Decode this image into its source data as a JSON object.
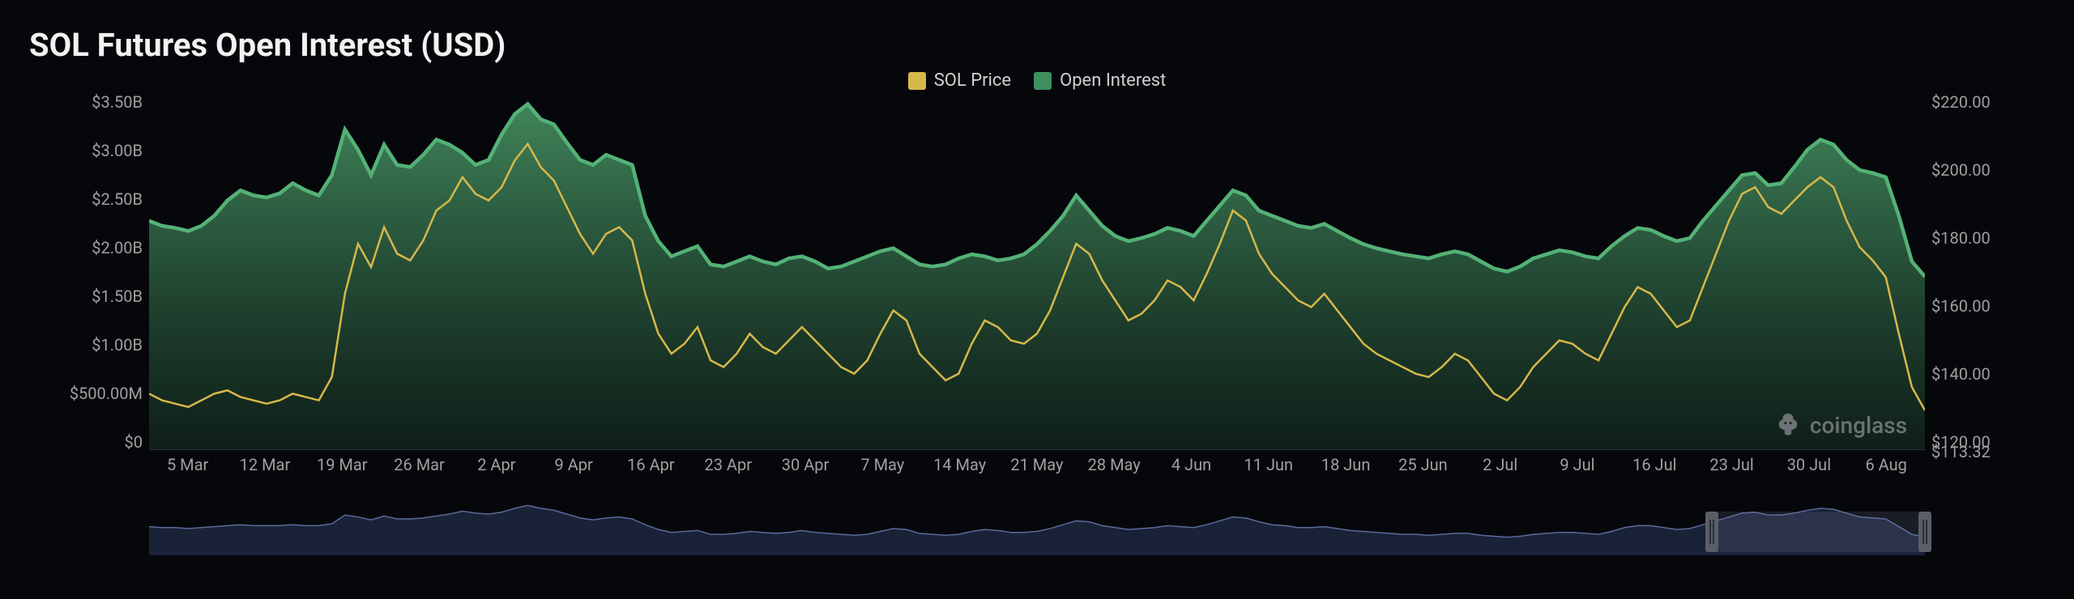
{
  "title": "SOL Futures Open Interest (USD)",
  "watermark": "coinglass",
  "legend": [
    {
      "label": "SOL Price",
      "color": "#d6b84a"
    },
    {
      "label": "Open Interest",
      "color": "#3e8f5d"
    }
  ],
  "chart": {
    "type": "area+line",
    "background_color": "#06070b",
    "grid_color": "#2a2d34",
    "text_color": "#a0a0a0",
    "title_fontsize": 40,
    "axis_fontsize": 20,
    "legend_fontsize": 22,
    "left_axis": {
      "unit": "USD",
      "ticks": [
        "$3.50B",
        "$3.00B",
        "$2.50B",
        "$2.00B",
        "$1.50B",
        "$1.00B",
        "$500.00M",
        "$0"
      ],
      "min": 0,
      "max": 3.5
    },
    "right_axis": {
      "unit": "USD",
      "ticks": [
        "$220.00",
        "$200.00",
        "$180.00",
        "$160.00",
        "$140.00",
        "$120.00"
      ],
      "extra_tick": "$113.32",
      "min": 113.32,
      "max": 220
    },
    "x_axis": {
      "labels": [
        "5 Mar",
        "12 Mar",
        "19 Mar",
        "26 Mar",
        "2 Apr",
        "9 Apr",
        "16 Apr",
        "23 Apr",
        "30 Apr",
        "7 May",
        "14 May",
        "21 May",
        "28 May",
        "4 Jun",
        "11 Jun",
        "18 Jun",
        "25 Jun",
        "2 Jul",
        "9 Jul",
        "16 Jul",
        "23 Jul",
        "30 Jul",
        "6 Aug"
      ]
    },
    "open_interest": {
      "color_top": "#4a9b68",
      "color_bottom": "#163324",
      "stroke": "#54b276",
      "stroke_width": 2,
      "values_billions": [
        2.25,
        2.2,
        2.18,
        2.15,
        2.2,
        2.3,
        2.45,
        2.55,
        2.5,
        2.48,
        2.52,
        2.62,
        2.55,
        2.5,
        2.7,
        3.15,
        2.95,
        2.7,
        3.0,
        2.8,
        2.78,
        2.9,
        3.05,
        3.0,
        2.92,
        2.8,
        2.85,
        3.1,
        3.3,
        3.4,
        3.25,
        3.2,
        3.02,
        2.85,
        2.8,
        2.9,
        2.85,
        2.8,
        2.3,
        2.05,
        1.9,
        1.95,
        2.0,
        1.82,
        1.8,
        1.85,
        1.9,
        1.85,
        1.82,
        1.88,
        1.9,
        1.85,
        1.78,
        1.8,
        1.85,
        1.9,
        1.95,
        1.98,
        1.9,
        1.82,
        1.8,
        1.82,
        1.88,
        1.92,
        1.9,
        1.86,
        1.88,
        1.92,
        2.02,
        2.15,
        2.3,
        2.5,
        2.35,
        2.2,
        2.1,
        2.05,
        2.08,
        2.12,
        2.18,
        2.15,
        2.1,
        2.25,
        2.4,
        2.55,
        2.5,
        2.35,
        2.3,
        2.25,
        2.2,
        2.18,
        2.22,
        2.15,
        2.08,
        2.02,
        1.98,
        1.95,
        1.92,
        1.9,
        1.88,
        1.92,
        1.95,
        1.92,
        1.85,
        1.78,
        1.75,
        1.8,
        1.88,
        1.92,
        1.96,
        1.94,
        1.9,
        1.88,
        2.0,
        2.1,
        2.18,
        2.16,
        2.1,
        2.05,
        2.08,
        2.25,
        2.4,
        2.55,
        2.7,
        2.72,
        2.6,
        2.62,
        2.78,
        2.95,
        3.05,
        3.0,
        2.85,
        2.75,
        2.72,
        2.68,
        2.3,
        1.85,
        1.7
      ]
    },
    "sol_price": {
      "color": "#d6b84a",
      "stroke_width": 2.5,
      "values_usd": [
        130,
        128,
        127,
        126,
        128,
        130,
        131,
        129,
        128,
        127,
        128,
        130,
        129,
        128,
        135,
        160,
        175,
        168,
        180,
        172,
        170,
        176,
        185,
        188,
        195,
        190,
        188,
        192,
        200,
        205,
        198,
        194,
        186,
        178,
        172,
        178,
        180,
        176,
        160,
        148,
        142,
        145,
        150,
        140,
        138,
        142,
        148,
        144,
        142,
        146,
        150,
        146,
        142,
        138,
        136,
        140,
        148,
        155,
        152,
        142,
        138,
        134,
        136,
        145,
        152,
        150,
        146,
        145,
        148,
        155,
        165,
        175,
        172,
        164,
        158,
        152,
        154,
        158,
        164,
        162,
        158,
        166,
        175,
        185,
        182,
        172,
        166,
        162,
        158,
        156,
        160,
        155,
        150,
        145,
        142,
        140,
        138,
        136,
        135,
        138,
        142,
        140,
        135,
        130,
        128,
        132,
        138,
        142,
        146,
        145,
        142,
        140,
        148,
        156,
        162,
        160,
        155,
        150,
        152,
        162,
        172,
        182,
        190,
        192,
        186,
        184,
        188,
        192,
        195,
        192,
        182,
        174,
        170,
        165,
        148,
        132,
        125
      ]
    }
  },
  "brush": {
    "line_color": "#5a6a9a",
    "selection_color": "rgba(120,130,160,0.18)",
    "handle_color": "#5b5e66",
    "selection_start_pct": 88,
    "selection_end_pct": 100,
    "values": [
      0.28,
      0.27,
      0.27,
      0.26,
      0.27,
      0.28,
      0.29,
      0.3,
      0.29,
      0.29,
      0.29,
      0.3,
      0.29,
      0.29,
      0.31,
      0.4,
      0.38,
      0.35,
      0.39,
      0.36,
      0.36,
      0.37,
      0.39,
      0.41,
      0.44,
      0.42,
      0.41,
      0.43,
      0.47,
      0.5,
      0.47,
      0.45,
      0.41,
      0.37,
      0.35,
      0.37,
      0.38,
      0.36,
      0.3,
      0.25,
      0.22,
      0.23,
      0.24,
      0.2,
      0.2,
      0.21,
      0.23,
      0.22,
      0.21,
      0.22,
      0.24,
      0.22,
      0.21,
      0.2,
      0.19,
      0.2,
      0.23,
      0.26,
      0.25,
      0.21,
      0.2,
      0.19,
      0.2,
      0.23,
      0.25,
      0.24,
      0.22,
      0.22,
      0.23,
      0.26,
      0.3,
      0.34,
      0.33,
      0.29,
      0.27,
      0.25,
      0.26,
      0.27,
      0.29,
      0.28,
      0.27,
      0.3,
      0.34,
      0.38,
      0.37,
      0.33,
      0.3,
      0.29,
      0.27,
      0.27,
      0.28,
      0.26,
      0.24,
      0.23,
      0.22,
      0.21,
      0.2,
      0.2,
      0.19,
      0.2,
      0.21,
      0.21,
      0.19,
      0.18,
      0.17,
      0.18,
      0.2,
      0.21,
      0.22,
      0.22,
      0.21,
      0.2,
      0.23,
      0.27,
      0.29,
      0.29,
      0.27,
      0.25,
      0.26,
      0.3,
      0.34,
      0.38,
      0.42,
      0.43,
      0.4,
      0.4,
      0.42,
      0.45,
      0.47,
      0.46,
      0.42,
      0.38,
      0.37,
      0.36,
      0.28,
      0.2,
      0.17
    ]
  }
}
